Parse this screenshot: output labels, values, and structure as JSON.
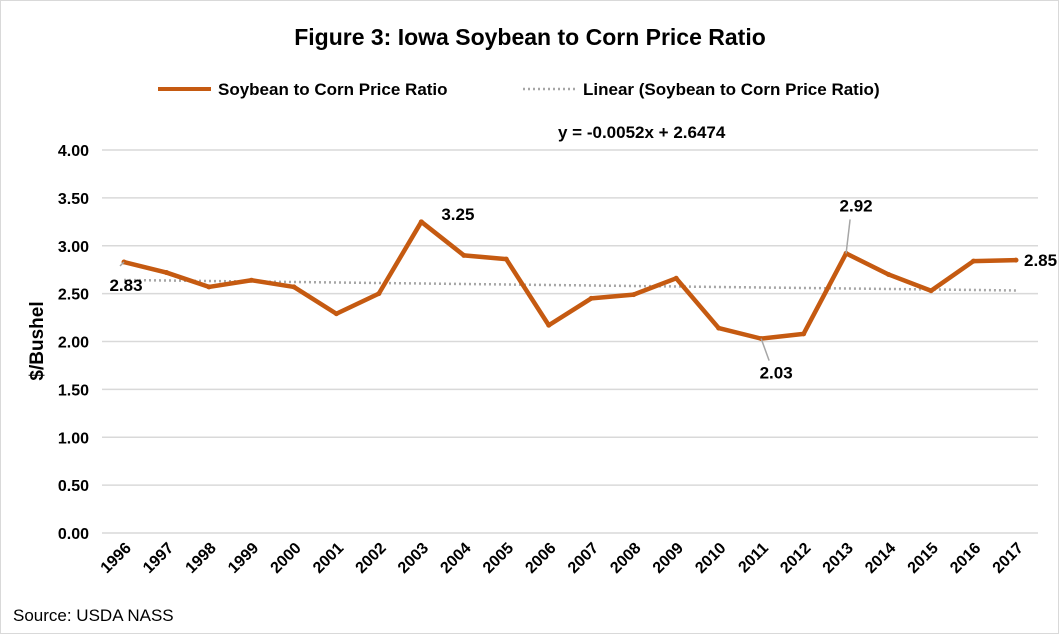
{
  "chart_data": {
    "type": "line",
    "title": "Figure 3: Iowa Soybean to Corn Price Ratio",
    "ylabel": "$/Bushel",
    "xlabel": "",
    "ylim": [
      0,
      4
    ],
    "yticks": [
      "0.00",
      "0.50",
      "1.00",
      "1.50",
      "2.00",
      "2.50",
      "3.00",
      "3.50",
      "4.00"
    ],
    "grid": true,
    "legend_position": "top",
    "categories": [
      "1996",
      "1997",
      "1998",
      "1999",
      "2000",
      "2001",
      "2002",
      "2003",
      "2004",
      "2005",
      "2006",
      "2007",
      "2008",
      "2009",
      "2010",
      "2011",
      "2012",
      "2013",
      "2014",
      "2015",
      "2016",
      "2017"
    ],
    "series": [
      {
        "name": "Soybean to Corn Price Ratio",
        "color": "#c55a11",
        "values": [
          2.83,
          2.72,
          2.57,
          2.64,
          2.57,
          2.29,
          2.5,
          3.25,
          2.9,
          2.86,
          2.17,
          2.45,
          2.49,
          2.66,
          2.14,
          2.03,
          2.08,
          2.92,
          2.7,
          2.53,
          2.84,
          2.85
        ]
      }
    ],
    "trendline": {
      "name": "Linear (Soybean to Corn Price Ratio)",
      "equation": "y = -0.0052x + 2.6474",
      "slope": -0.0052,
      "intercept": 2.6474,
      "color": "#a6a6a6"
    },
    "data_labels": [
      {
        "category": "1996",
        "text": "2.83"
      },
      {
        "category": "2003",
        "text": "3.25"
      },
      {
        "category": "2011",
        "text": "2.03"
      },
      {
        "category": "2013",
        "text": "2.92"
      },
      {
        "category": "2017",
        "text": "2.85"
      }
    ],
    "source": "Source: USDA NASS"
  }
}
